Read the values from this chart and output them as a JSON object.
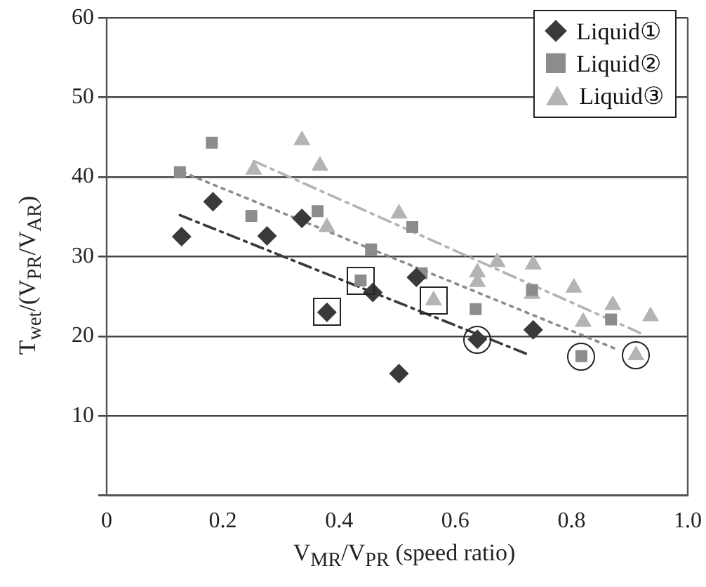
{
  "chart_data": {
    "type": "scatter",
    "xlabel": "V$_{MR}$/V$_{PR}$ (speed ratio)",
    "ylabel": "T$_{wet}$/(V$_{PR}$/V$_{AR}$)",
    "xlim": [
      0,
      1
    ],
    "xticks": [
      0,
      0.2,
      0.4,
      0.6,
      0.8,
      {
        "value": 1,
        "label": "1.0"
      }
    ],
    "ylim": [
      0,
      60
    ],
    "yticks": [
      {
        "value": 0,
        "label": null
      },
      10,
      20,
      30,
      40,
      50,
      60
    ],
    "grid": "y",
    "legend": "top right",
    "series": [
      {
        "name": "Liquid①",
        "color": "#3a3a3a",
        "marker": "diamond",
        "x": [
          0.129,
          0.183,
          0.276,
          0.336,
          0.379,
          0.458,
          0.503,
          0.533,
          0.638,
          0.734
        ],
        "values": [
          32.5,
          36.9,
          32.6,
          34.8,
          23.0,
          25.5,
          15.3,
          27.4,
          19.6,
          20.8
        ]
      },
      {
        "name": "Liquid②",
        "color": "#8c8c8c",
        "marker": "square",
        "x": [
          0.126,
          0.181,
          0.249,
          0.363,
          0.437,
          0.455,
          0.526,
          0.542,
          0.635,
          0.732,
          0.817,
          0.868
        ],
        "values": [
          40.6,
          44.3,
          35.1,
          35.7,
          27.0,
          30.9,
          33.7,
          27.9,
          23.4,
          25.8,
          17.5,
          22.1
        ]
      },
      {
        "name": "Liquid③",
        "color": "#b4b4b4",
        "marker": "triangle",
        "x": [
          0.253,
          0.336,
          0.367,
          0.379,
          0.503,
          0.5625,
          0.638,
          0.638,
          0.672,
          0.732,
          0.734,
          0.804,
          0.82,
          0.871,
          0.911,
          0.936
        ],
        "values": [
          40.9,
          44.6,
          41.4,
          33.7,
          35.4,
          24.5,
          28.0,
          26.8,
          29.3,
          25.3,
          29.0,
          26.1,
          21.8,
          23.9,
          17.6,
          22.5
        ]
      },
      {
        "type": "line",
        "color": "#3a3a3a",
        "line_style": "dashed",
        "x": [
          0.126,
          0.722
        ],
        "values": [
          35.2,
          17.8
        ]
      },
      {
        "type": "line",
        "color": "#8c8c8c",
        "line_style": "dotted",
        "x": [
          0.131,
          0.873
        ],
        "values": [
          40.6,
          18.5
        ]
      },
      {
        "type": "line",
        "color": "#b4b4b4",
        "line_style": "dashed",
        "x": [
          0.253,
          0.918
        ],
        "values": [
          42.0,
          20.4
        ]
      }
    ]
  }
}
